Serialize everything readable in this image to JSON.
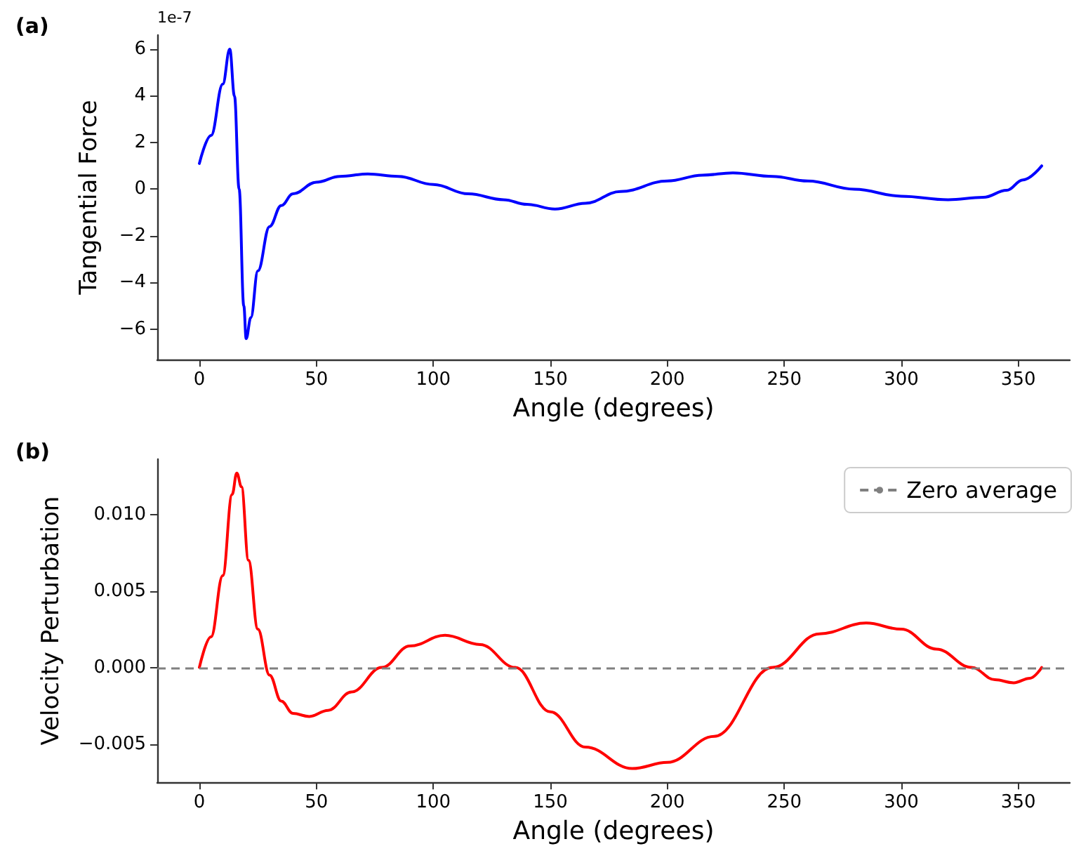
{
  "chart_data": [
    {
      "type": "line",
      "title": "(a)",
      "xlabel": "Angle (degrees)",
      "ylabel": "Tangential Force",
      "annotations": [
        "1e-7"
      ],
      "x": [
        0,
        5,
        10,
        13,
        15,
        17,
        19,
        20,
        22,
        25,
        30,
        35,
        40,
        50,
        60,
        72,
        85,
        100,
        115,
        130,
        140,
        152,
        165,
        180,
        200,
        215,
        228,
        245,
        260,
        280,
        300,
        320,
        335,
        345,
        352,
        360
      ],
      "series": [
        {
          "color": "#0000ff",
          "values": [
            1.1,
            2.3,
            4.5,
            6.0,
            4.0,
            0,
            -5.0,
            -6.4,
            -5.5,
            -3.5,
            -1.6,
            -0.7,
            -0.2,
            0.3,
            0.55,
            0.65,
            0.55,
            0.2,
            -0.2,
            -0.45,
            -0.65,
            -0.85,
            -0.6,
            -0.1,
            0.35,
            0.6,
            0.7,
            0.55,
            0.35,
            0,
            -0.3,
            -0.45,
            -0.35,
            -0.05,
            0.4,
            1.0
          ]
        }
      ],
      "xlim": [
        -18,
        372
      ],
      "xticks": [
        0,
        50,
        100,
        150,
        200,
        250,
        300,
        350
      ],
      "ylim": [
        -7.3,
        6.6
      ],
      "yticks": [
        {
          "value": -6,
          "label": "−6"
        },
        {
          "value": -4,
          "label": "−4"
        },
        {
          "value": -2,
          "label": "−2"
        },
        0,
        2,
        4,
        6
      ],
      "grid": false,
      "legend": false,
      "marker": "none",
      "line_style": "solid"
    },
    {
      "type": "line",
      "title": "(b)",
      "xlabel": "Angle (degrees)",
      "ylabel": "Velocity Perturbation",
      "x": [
        0,
        5,
        10,
        14,
        16,
        18,
        21,
        25,
        30,
        35,
        40,
        47,
        55,
        65,
        78,
        90,
        105,
        120,
        135,
        150,
        165,
        185,
        200,
        220,
        245,
        265,
        285,
        300,
        315,
        330,
        340,
        348,
        355,
        360
      ],
      "series": [
        {
          "color": "#ff0000",
          "values": [
            0,
            0.002,
            0.006,
            0.0113,
            0.0127,
            0.0118,
            0.007,
            0.0025,
            -0.0005,
            -0.0022,
            -0.003,
            -0.0032,
            -0.0028,
            -0.0016,
            0,
            0.0014,
            0.0021,
            0.0015,
            0,
            -0.0029,
            -0.0052,
            -0.0066,
            -0.0062,
            -0.0045,
            0,
            0.0022,
            0.0029,
            0.0025,
            0.0012,
            0,
            -0.0008,
            -0.001,
            -0.0007,
            0
          ]
        }
      ],
      "ref_lines": [
        {
          "axis": "y",
          "value": 0,
          "label": "Zero average",
          "color": "#808080",
          "line_style": "dashed"
        }
      ],
      "xlim": [
        -18,
        372
      ],
      "xticks": [
        0,
        50,
        100,
        150,
        200,
        250,
        300,
        350
      ],
      "ylim": [
        -0.0075,
        0.0136
      ],
      "yticks": [
        {
          "value": -0.005,
          "label": "−0.005"
        },
        {
          "value": 0,
          "label": "0.000"
        },
        {
          "value": 0.005,
          "label": "0.005"
        },
        {
          "value": 0.01,
          "label": "0.010"
        }
      ],
      "grid": false,
      "legend": "top right",
      "marker": "none",
      "line_style": "solid"
    }
  ]
}
